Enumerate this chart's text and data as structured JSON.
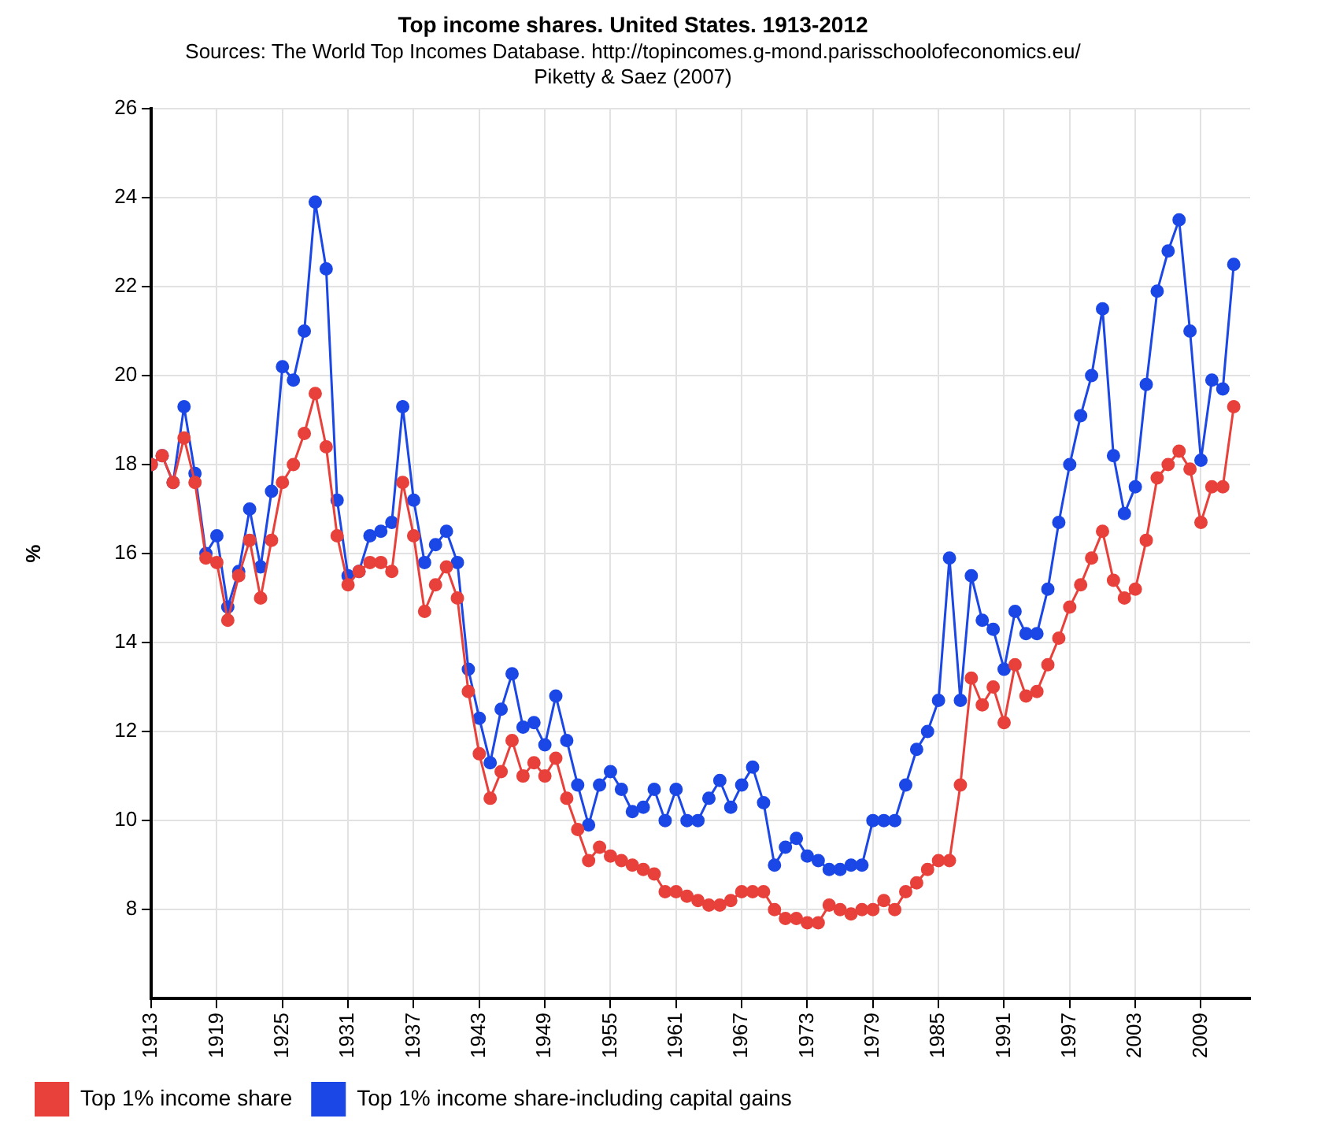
{
  "chart_data": {
    "type": "line",
    "title": "Top income shares. United States. 1913-2012",
    "subtitle": "Sources: The World Top Incomes Database. http://topincomes.g-mond.parisschoolofeconomics.eu/",
    "annotations": [
      "Piketty & Saez (2007)"
    ],
    "ylabel": "%",
    "x": [
      1913,
      1914,
      1915,
      1916,
      1917,
      1918,
      1919,
      1920,
      1921,
      1922,
      1923,
      1924,
      1925,
      1926,
      1927,
      1928,
      1929,
      1930,
      1931,
      1932,
      1933,
      1934,
      1935,
      1936,
      1937,
      1938,
      1939,
      1940,
      1941,
      1942,
      1943,
      1944,
      1945,
      1946,
      1947,
      1948,
      1949,
      1950,
      1951,
      1952,
      1953,
      1954,
      1955,
      1956,
      1957,
      1958,
      1959,
      1960,
      1961,
      1962,
      1963,
      1964,
      1965,
      1966,
      1967,
      1968,
      1969,
      1970,
      1971,
      1972,
      1973,
      1974,
      1975,
      1976,
      1977,
      1978,
      1979,
      1980,
      1981,
      1982,
      1983,
      1984,
      1985,
      1986,
      1987,
      1988,
      1989,
      1990,
      1991,
      1992,
      1993,
      1994,
      1995,
      1996,
      1997,
      1998,
      1999,
      2000,
      2001,
      2002,
      2003,
      2004,
      2005,
      2006,
      2007,
      2008,
      2009,
      2010,
      2011,
      2012
    ],
    "series": [
      {
        "name": "Top 1% income share",
        "color": "#e8403a",
        "values": [
          18.0,
          18.2,
          17.6,
          18.6,
          17.6,
          15.9,
          15.8,
          14.5,
          15.5,
          16.3,
          15.0,
          16.3,
          17.6,
          18.0,
          18.7,
          19.6,
          18.4,
          16.4,
          15.3,
          15.6,
          15.8,
          15.8,
          15.6,
          17.6,
          16.4,
          14.7,
          15.3,
          15.7,
          15.0,
          12.9,
          11.5,
          10.5,
          11.1,
          11.8,
          11.0,
          11.3,
          11.0,
          11.4,
          10.5,
          9.8,
          9.1,
          9.4,
          9.2,
          9.1,
          9.0,
          8.9,
          8.8,
          8.4,
          8.4,
          8.3,
          8.2,
          8.1,
          8.1,
          8.2,
          8.4,
          8.4,
          8.4,
          8.0,
          7.8,
          7.8,
          7.7,
          7.7,
          8.1,
          8.0,
          7.9,
          8.0,
          8.0,
          8.2,
          8.0,
          8.4,
          8.6,
          8.9,
          9.1,
          9.1,
          10.8,
          13.2,
          12.6,
          13.0,
          12.2,
          13.5,
          12.8,
          12.9,
          13.5,
          14.1,
          14.8,
          15.3,
          15.9,
          16.5,
          15.4,
          15.0,
          15.2,
          16.3,
          17.7,
          18.0,
          18.3,
          17.9,
          16.7,
          17.5,
          17.5,
          19.3
        ]
      },
      {
        "name": "Top 1% income share-including capital gains",
        "color": "#1a47e6",
        "values": [
          18.0,
          18.2,
          17.6,
          19.3,
          17.8,
          16.0,
          16.4,
          14.8,
          15.6,
          17.0,
          15.7,
          17.4,
          20.2,
          19.9,
          21.0,
          23.9,
          22.4,
          17.2,
          15.5,
          15.6,
          16.4,
          16.5,
          16.7,
          19.3,
          17.2,
          15.8,
          16.2,
          16.5,
          15.8,
          13.4,
          12.3,
          11.3,
          12.5,
          13.3,
          12.1,
          12.2,
          11.7,
          12.8,
          11.8,
          10.8,
          9.9,
          10.8,
          11.1,
          10.7,
          10.2,
          10.3,
          10.7,
          10.0,
          10.7,
          10.0,
          10.0,
          10.5,
          10.9,
          10.3,
          10.8,
          11.2,
          10.4,
          9.0,
          9.4,
          9.6,
          9.2,
          9.1,
          8.9,
          8.9,
          9.0,
          9.0,
          10.0,
          10.0,
          10.0,
          10.8,
          11.6,
          12.0,
          12.7,
          15.9,
          12.7,
          15.5,
          14.5,
          14.3,
          13.4,
          14.7,
          14.2,
          14.2,
          15.2,
          16.7,
          18.0,
          19.1,
          20.0,
          21.5,
          18.2,
          16.9,
          17.5,
          19.8,
          21.9,
          22.8,
          23.5,
          21.0,
          18.1,
          19.9,
          19.7,
          22.5
        ]
      }
    ],
    "xlim": [
      1913,
      2013.5
    ],
    "xticks": [
      1913,
      1919,
      1925,
      1931,
      1937,
      1943,
      1949,
      1955,
      1961,
      1967,
      1973,
      1979,
      1985,
      1991,
      1997,
      2003,
      2009
    ],
    "ylim": [
      6,
      26
    ],
    "yticks": [
      8,
      10,
      12,
      14,
      16,
      18,
      20,
      22,
      24,
      26
    ],
    "grid": true,
    "legend": "bottom",
    "marker": "circle",
    "line_style": "solid"
  }
}
